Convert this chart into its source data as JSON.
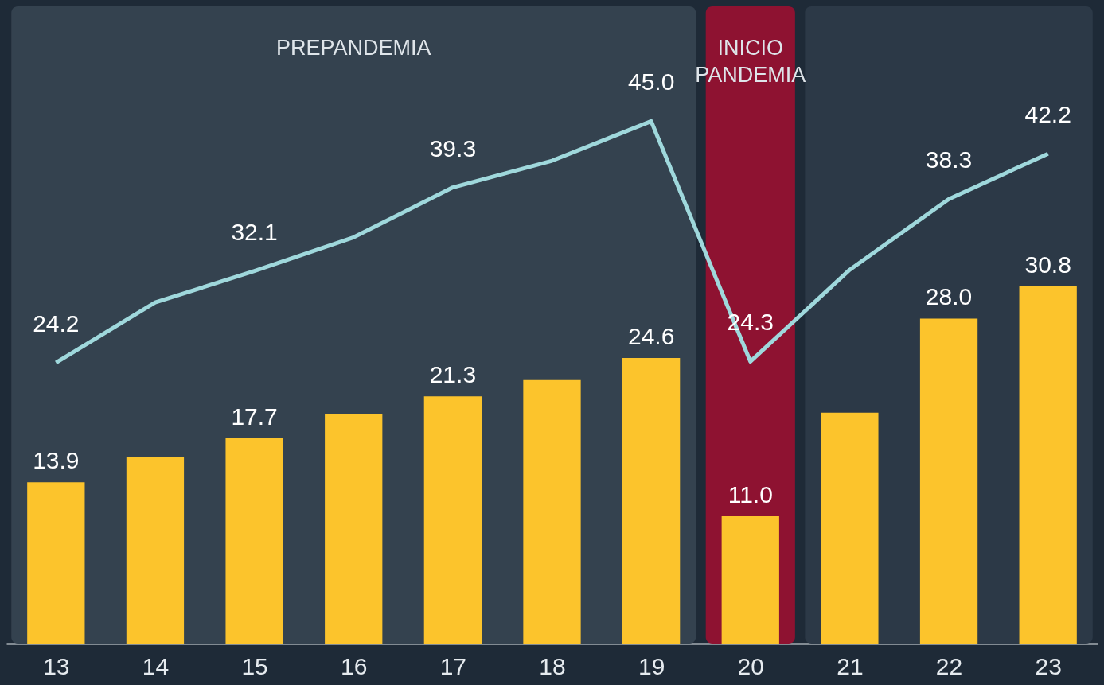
{
  "chart_data": {
    "type": "bar",
    "categories": [
      "13",
      "14",
      "15",
      "16",
      "17",
      "18",
      "19",
      "20",
      "21",
      "22",
      "23"
    ],
    "series": [
      {
        "type": "bar",
        "color": "#fcc42c",
        "values": [
          13.9,
          16.1,
          17.7,
          19.8,
          21.3,
          22.7,
          24.6,
          11.0,
          19.9,
          28.0,
          30.8
        ],
        "value_labels": [
          "13.9",
          null,
          "17.7",
          null,
          "21.3",
          null,
          "24.6",
          "11.0",
          null,
          "28.0",
          "30.8"
        ]
      },
      {
        "type": "line",
        "color": "#9fd8dc",
        "values": [
          24.2,
          29.4,
          32.1,
          35.0,
          39.3,
          41.6,
          45.0,
          24.3,
          32.2,
          38.3,
          42.2
        ],
        "value_labels": [
          "24.2",
          null,
          "32.1",
          null,
          "39.3",
          null,
          "45.0",
          "24.3",
          null,
          "38.3",
          "42.2"
        ]
      }
    ],
    "bands": [
      {
        "axis": "x",
        "from": "13",
        "to": "19",
        "label": "PREPANDEMIA",
        "color": "#34424f"
      },
      {
        "axis": "x",
        "from": "20",
        "to": "20",
        "label": "INICIO PANDEMIA",
        "color": "#8e1231"
      },
      {
        "axis": "x",
        "from": "21",
        "to": "23",
        "color": "#2c3947"
      }
    ],
    "tick_labels": "x",
    "grid": false,
    "marker": "none"
  }
}
